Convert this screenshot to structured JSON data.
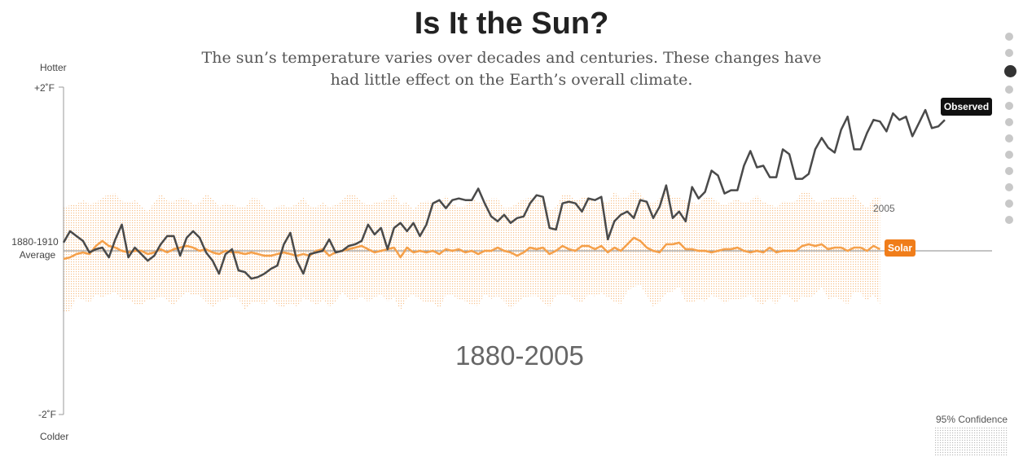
{
  "header": {
    "title": "Is It the Sun?",
    "subtitle": "The sun’s temperature varies over decades and centuries. These changes have had little effect on the Earth’s overall climate."
  },
  "axis": {
    "top_label": "Hotter",
    "bottom_label": "Colder",
    "tick_top": "+2˚F",
    "tick_bottom": "-2˚F",
    "baseline_line1": "1880-1910",
    "baseline_line2": "Average"
  },
  "range_label": "1880-2005",
  "confidence_label": "95% Confidence",
  "nav": {
    "count": 12,
    "active_index": 2
  },
  "colors": {
    "observed": "#4a4a4a",
    "solar": "#f5a04a",
    "solar_label_bg": "#f07d1a",
    "band": "#f5b06a",
    "axis": "#999999"
  },
  "chart_data": {
    "type": "line",
    "ylim": [
      -2,
      2
    ],
    "xlim": [
      1880,
      2015
    ],
    "year_end_label": "2005",
    "series": [
      {
        "name": "Observed",
        "x_start": 1880,
        "values": [
          0.1,
          0.24,
          0.18,
          0.12,
          -0.02,
          0.02,
          0.04,
          -0.08,
          0.14,
          0.32,
          -0.08,
          0.04,
          -0.04,
          -0.12,
          -0.06,
          0.08,
          0.18,
          0.18,
          -0.06,
          0.16,
          0.24,
          0.16,
          -0.02,
          -0.12,
          -0.28,
          -0.04,
          0.02,
          -0.24,
          -0.26,
          -0.34,
          -0.32,
          -0.28,
          -0.22,
          -0.18,
          0.08,
          0.22,
          -0.12,
          -0.28,
          -0.04,
          -0.02,
          0.0,
          0.14,
          -0.02,
          0.0,
          0.06,
          0.08,
          0.12,
          0.32,
          0.2,
          0.28,
          0.02,
          0.28,
          0.34,
          0.24,
          0.34,
          0.18,
          0.32,
          0.58,
          0.62,
          0.52,
          0.62,
          0.64,
          0.62,
          0.62,
          0.76,
          0.58,
          0.42,
          0.36,
          0.44,
          0.34,
          0.4,
          0.42,
          0.58,
          0.68,
          0.66,
          0.28,
          0.26,
          0.58,
          0.6,
          0.58,
          0.48,
          0.64,
          0.62,
          0.66,
          0.14,
          0.36,
          0.44,
          0.48,
          0.4,
          0.62,
          0.6,
          0.4,
          0.54,
          0.8,
          0.4,
          0.48,
          0.36,
          0.78,
          0.64,
          0.72,
          0.98,
          0.92,
          0.7,
          0.74,
          0.74,
          1.04,
          1.22,
          1.02,
          1.04,
          0.9,
          0.9,
          1.24,
          1.18,
          0.88,
          0.88,
          0.94,
          1.24,
          1.38,
          1.26,
          1.2,
          1.48,
          1.64,
          1.24,
          1.24,
          1.44,
          1.6,
          1.58,
          1.46,
          1.68,
          1.6,
          1.64,
          1.4,
          1.56,
          1.72,
          1.5,
          1.52,
          1.6
        ]
      },
      {
        "name": "Solar",
        "x_start": 1880,
        "values": [
          -0.1,
          -0.08,
          -0.04,
          -0.02,
          -0.04,
          0.06,
          0.12,
          0.06,
          0.04,
          0.0,
          -0.02,
          0.0,
          0.0,
          -0.04,
          -0.02,
          0.02,
          -0.02,
          0.02,
          0.04,
          0.06,
          0.04,
          0.0,
          0.02,
          -0.02,
          -0.04,
          0.0,
          -0.02,
          -0.02,
          -0.04,
          -0.02,
          -0.04,
          -0.06,
          -0.06,
          -0.04,
          -0.02,
          -0.04,
          -0.06,
          -0.04,
          -0.06,
          0.0,
          0.02,
          -0.06,
          -0.02,
          0.0,
          0.02,
          0.04,
          0.06,
          0.02,
          -0.02,
          0.0,
          0.02,
          0.04,
          -0.08,
          0.04,
          -0.02,
          0.0,
          -0.02,
          0.0,
          -0.04,
          0.02,
          0.0,
          0.02,
          -0.02,
          0.0,
          -0.04,
          0.0,
          0.0,
          0.04,
          0.0,
          -0.02,
          -0.06,
          -0.02,
          0.04,
          0.02,
          0.04,
          -0.04,
          0.0,
          0.06,
          0.02,
          0.0,
          0.06,
          0.06,
          0.02,
          0.06,
          -0.02,
          0.04,
          0.0,
          0.08,
          0.16,
          0.12,
          0.04,
          0.0,
          -0.02,
          0.08,
          0.08,
          0.1,
          0.02,
          0.02,
          0.0,
          0.0,
          -0.02,
          0.0,
          0.02,
          0.02,
          0.04,
          0.0,
          -0.02,
          0.0,
          -0.02,
          0.04,
          -0.02,
          0.0,
          0.0,
          0.0,
          0.06,
          0.08,
          0.06,
          0.08,
          0.02,
          0.04,
          0.04,
          0.0,
          0.04,
          0.04,
          0.0,
          0.06,
          0.02,
          0.06,
          0.0,
          0.02,
          0.02,
          0.04,
          0.04,
          0.04,
          0.06,
          0.06
        ]
      }
    ]
  }
}
